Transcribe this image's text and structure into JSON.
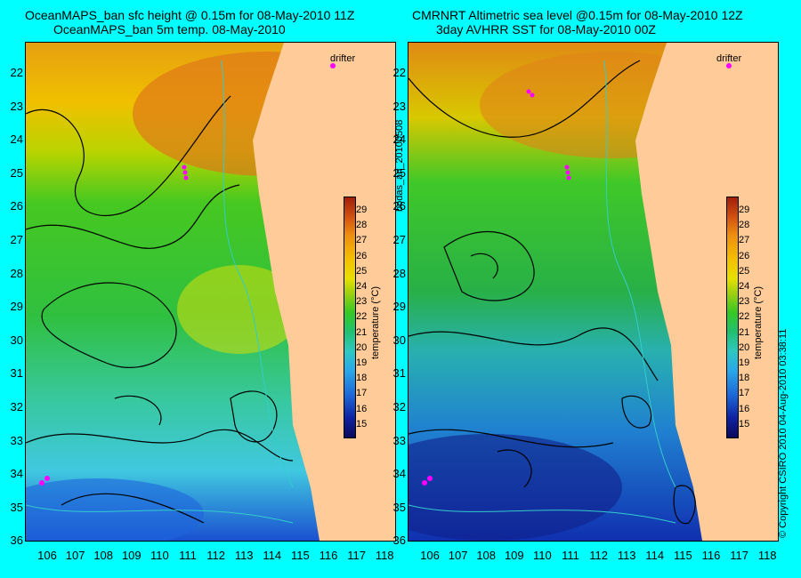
{
  "left_panel": {
    "title_line1": "OceanMAPS_ban sfc height @ 0.15m for 08-May-2010 11Z",
    "title_line2": "OceanMAPS_ban 5m temp. 08-May-2010",
    "drifter_label": "drifter"
  },
  "right_panel": {
    "title_line1": "CMRNRT Altimetric sea level  @0.15m  for 08-May-2010 12Z",
    "title_line2": "3day AVHRR SST for 08-May-2010 00Z",
    "drifter_label": "drifter"
  },
  "y_ticks": [
    "22",
    "23",
    "24",
    "25",
    "26",
    "27",
    "28",
    "29",
    "30",
    "31",
    "32",
    "33",
    "34",
    "35",
    "36"
  ],
  "x_ticks": [
    "106",
    "107",
    "108",
    "109",
    "110",
    "111",
    "112",
    "113",
    "114",
    "115",
    "116",
    "117",
    "118"
  ],
  "colorbar": {
    "title": "temperature (°C)",
    "ticks": [
      "29",
      "28",
      "27",
      "26",
      "25",
      "24",
      "23",
      "22",
      "21",
      "20",
      "19",
      "18",
      "17",
      "16",
      "15"
    ]
  },
  "side_labels": {
    "analysis_id": "bodas_an_20100508",
    "copyright": "© Copyright CSIRO 2010   04-Aug-2010 03:38:11"
  },
  "colors": {
    "background": "#00ffff",
    "land": "#ffcc99",
    "drifter": "#ff00ff",
    "contour": "#000000",
    "bathymetry": "#33cccc"
  }
}
